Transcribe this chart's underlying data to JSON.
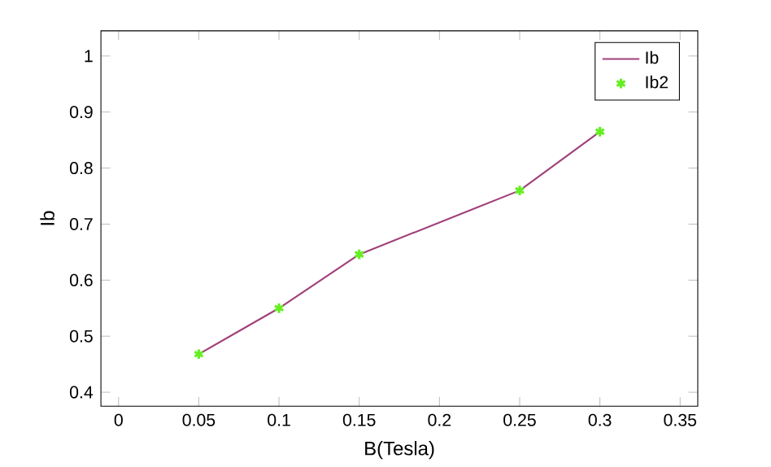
{
  "chart_data": {
    "type": "line",
    "xlabel": "B(Tesla)",
    "ylabel": "Ib",
    "x": [
      0.05,
      0.1,
      0.15,
      0.25,
      0.3
    ],
    "series": [
      {
        "name": "Ib",
        "color": "#a0407a",
        "values": [
          0.468,
          0.55,
          0.646,
          0.76,
          0.865
        ],
        "marker": "none"
      },
      {
        "name": "Ib2",
        "type": "scatter",
        "color": "#66ee22",
        "values": [
          0.468,
          0.55,
          0.646,
          0.76,
          0.865
        ],
        "marker": "cross"
      }
    ],
    "xlim": [
      -0.011,
      0.361
    ],
    "ylim": [
      0.375,
      1.045
    ],
    "xticks": [
      0,
      0.05,
      0.1,
      0.15,
      0.2,
      0.25,
      0.3,
      0.35
    ],
    "yticks": [
      0.4,
      0.5,
      0.6,
      0.7,
      0.8,
      0.9,
      1
    ],
    "legend": "top right"
  }
}
